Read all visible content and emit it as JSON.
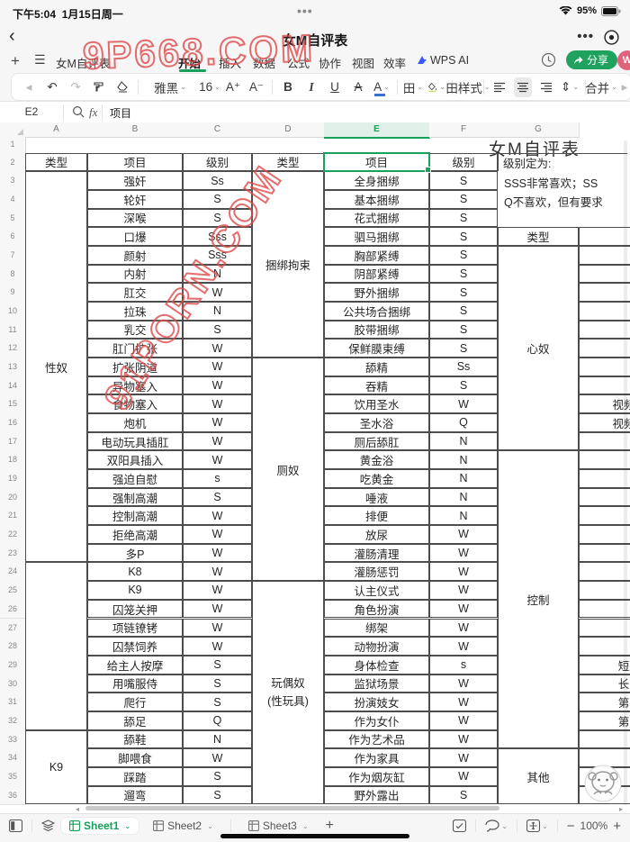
{
  "status_bar": {
    "time": "下午5:04",
    "date": "1月15日周一",
    "battery": "95%",
    "center_dots": "•••"
  },
  "title_bar": {
    "title": "女M自评表",
    "more": "•••"
  },
  "menu_bar": {
    "doc_tab": "女M自评表",
    "tabs": [
      "开始",
      "插入",
      "数据",
      "公式",
      "协作",
      "视图",
      "效率"
    ],
    "active_tab": "开始",
    "ai_label": "WPS AI",
    "share_label": "分享",
    "avatar_initial": "W"
  },
  "toolbar": {
    "font_name": "雅黑",
    "font_size": "16",
    "borders_label": "田",
    "style_label": "样式",
    "merge_label": "合并",
    "bold": "B",
    "italic": "I",
    "underline": "U",
    "strike": "A",
    "font_color": "A",
    "grow": "A⁺",
    "shrink": "A⁻"
  },
  "formula_bar": {
    "cell_ref": "E2",
    "fx": "fx",
    "value": "项目"
  },
  "watermarks": {
    "top": "9P668.COM",
    "diagonal": "91PORN.COM"
  },
  "sheet": {
    "title": "女M自评表",
    "column_labels": [
      "A",
      "B",
      "C",
      "D",
      "E",
      "F",
      "G"
    ],
    "selected_column": "E",
    "row_count": 36,
    "header_row": {
      "a": "类型",
      "b": "项目",
      "c": "级别",
      "d": "类型",
      "e": "项目",
      "f": "级别",
      "g": "级别定为:"
    },
    "legend_lines": [
      "SSS非常喜欢；SS",
      "Q不喜欢，但有要求"
    ],
    "g_subheader": "类型",
    "rows_left": [
      [
        "强奸",
        "Ss"
      ],
      [
        "轮奸",
        "S"
      ],
      [
        "深喉",
        "S"
      ],
      [
        "口爆",
        "Sss"
      ],
      [
        "颜射",
        "Sss"
      ],
      [
        "内射",
        "N"
      ],
      [
        "肛交",
        "W"
      ],
      [
        "拉珠",
        "N"
      ],
      [
        "乳交",
        "S"
      ],
      [
        "肛门扩张",
        "W"
      ],
      [
        "扩张阴道",
        "W"
      ],
      [
        "异物塞入",
        "W"
      ],
      [
        "食物塞入",
        "W"
      ],
      [
        "炮机",
        "W"
      ],
      [
        "电动玩具插肛",
        "W"
      ],
      [
        "双阳具插入",
        "W"
      ],
      [
        "强迫自慰",
        "s"
      ],
      [
        "强制高潮",
        "S"
      ],
      [
        "控制高潮",
        "W"
      ],
      [
        "拒绝高潮",
        "W"
      ],
      [
        "多P",
        "W"
      ],
      [
        "K8",
        "W"
      ],
      [
        "K9",
        "W"
      ],
      [
        "囚笼关押",
        "W"
      ],
      [
        "项链镣铐",
        "W"
      ],
      [
        "囚禁饲养",
        "W"
      ],
      [
        "给主人按摩",
        "S"
      ],
      [
        "用嘴服侍",
        "S"
      ],
      [
        "爬行",
        "S"
      ],
      [
        "舔足",
        "Q"
      ],
      [
        "舔鞋",
        "N"
      ],
      [
        "脚喂食",
        "W"
      ],
      [
        "踩踏",
        "S"
      ],
      [
        "遛弯",
        "S"
      ]
    ],
    "rows_right": [
      [
        "全身捆绑",
        "S"
      ],
      [
        "基本捆绑",
        "S"
      ],
      [
        "花式捆绑",
        "S"
      ],
      [
        "驷马捆绑",
        "S"
      ],
      [
        "胸部紧缚",
        "S"
      ],
      [
        "阴部紧缚",
        "S"
      ],
      [
        "野外捆绑",
        "S"
      ],
      [
        "公共场合捆绑",
        "S"
      ],
      [
        "胶带捆绑",
        "S"
      ],
      [
        "保鲜膜束缚",
        "S"
      ],
      [
        "舔精",
        "Ss"
      ],
      [
        "吞精",
        "S"
      ],
      [
        "饮用圣水",
        "W"
      ],
      [
        "圣水浴",
        "Q"
      ],
      [
        "厕后舔肛",
        "N"
      ],
      [
        "黄金浴",
        "N"
      ],
      [
        "吃黄金",
        "N"
      ],
      [
        "唾液",
        "N"
      ],
      [
        "排便",
        "N"
      ],
      [
        "放尿",
        "W"
      ],
      [
        "灌肠清理",
        "W"
      ],
      [
        "灌肠惩罚",
        "W"
      ],
      [
        "认主仪式",
        "W"
      ],
      [
        "角色扮演",
        "W"
      ],
      [
        "绑架",
        "W"
      ],
      [
        "动物扮演",
        "W"
      ],
      [
        "身体检查",
        "s"
      ],
      [
        "监狱场景",
        "W"
      ],
      [
        "扮演妓女",
        "W"
      ],
      [
        "作为女仆",
        "W"
      ],
      [
        "作为艺术品",
        "W"
      ],
      [
        "作为家具",
        "W"
      ],
      [
        "作为烟灰缸",
        "W"
      ],
      [
        "野外露出",
        "S"
      ]
    ],
    "groups_a": [
      {
        "label": "性奴",
        "from": 3,
        "to": 23
      },
      {
        "label": "",
        "from": 24,
        "to": 32
      },
      {
        "label": "K9",
        "from": 33,
        "to": 36
      }
    ],
    "groups_d": [
      {
        "label": "捆绑拘束",
        "from": 3,
        "to": 12
      },
      {
        "label": "厕奴",
        "from": 13,
        "to": 24
      },
      {
        "label": "玩偶奴|(性玩具)",
        "from": 25,
        "to": 36
      }
    ],
    "groups_g": [
      {
        "label": "心奴",
        "from": 7,
        "to": 17
      },
      {
        "label": "控制",
        "from": 18,
        "to": 33
      },
      {
        "label": "其他",
        "from": 34,
        "to": 36
      }
    ],
    "h_col_cells": {
      "15": "视频",
      "16": "视频",
      "29": "短",
      "30": "长",
      "31": "第",
      "32": "第"
    }
  },
  "bottom_bar": {
    "sheets": [
      "Sheet1",
      "Sheet2",
      "Sheet3"
    ],
    "active_sheet": "Sheet1",
    "zoom_level": "100%",
    "minus": "−",
    "plus": "+"
  },
  "colors": {
    "accent_green": "#17a35c",
    "watermark_red": "#dd4848",
    "border_dark": "#4c4c4c"
  }
}
